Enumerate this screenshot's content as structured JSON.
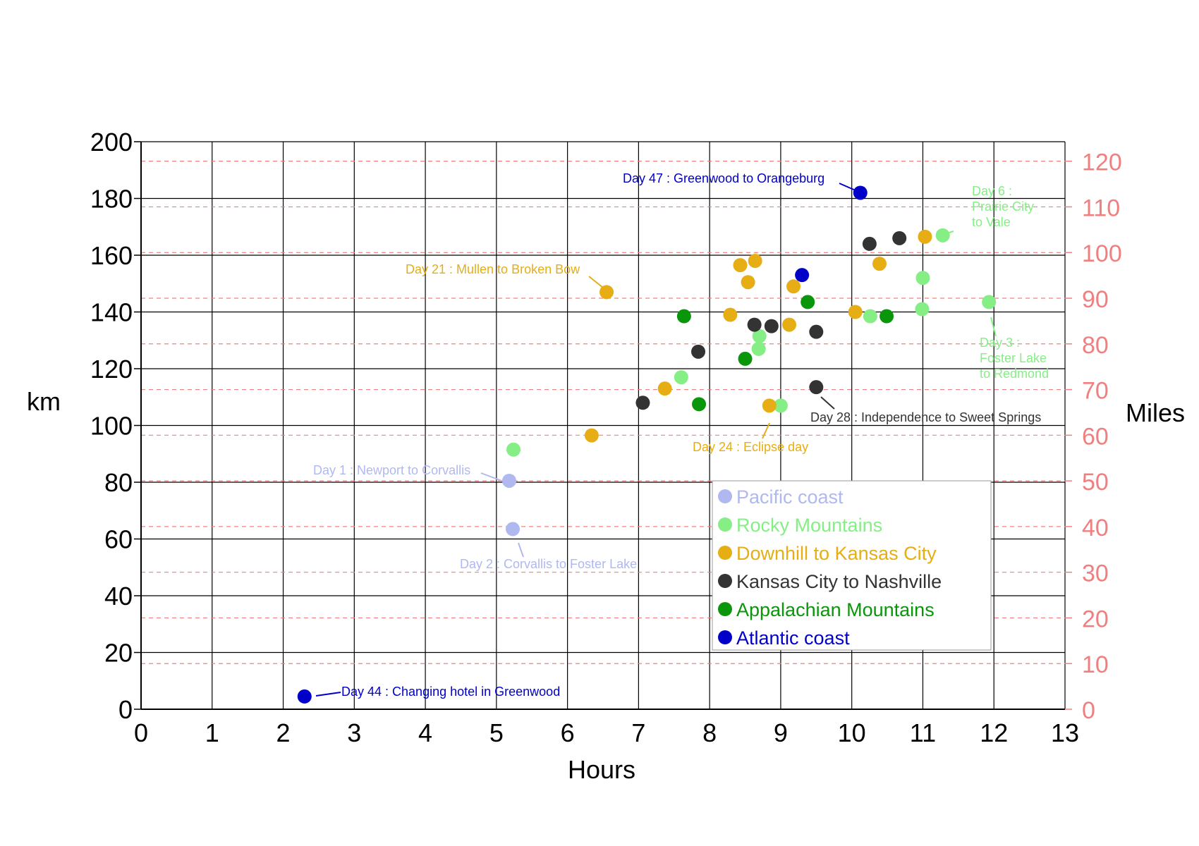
{
  "chart_data": {
    "type": "scatter",
    "title": "",
    "xlabel": "Hours",
    "ylabel": "km",
    "y2label": "Miles",
    "xlim": [
      0,
      13
    ],
    "ylim": [
      0,
      200
    ],
    "y2lim": [
      0,
      124.27
    ],
    "x_ticks": [
      "0",
      "1",
      "2",
      "3",
      "4",
      "5",
      "6",
      "7",
      "8",
      "9",
      "10",
      "11",
      "12",
      "13"
    ],
    "y_ticks": [
      "0",
      "20",
      "40",
      "60",
      "80",
      "100",
      "120",
      "140",
      "160",
      "180",
      "200"
    ],
    "y2_ticks": [
      "0",
      "10",
      "20",
      "30",
      "40",
      "50",
      "60",
      "70",
      "80",
      "90",
      "100",
      "110",
      "120"
    ],
    "grid": true,
    "legend_position": "bottom-right inside plot",
    "series": [
      {
        "name": "Pacific coast",
        "color": "#b0b8f0",
        "points": [
          [
            5.18,
            80.5
          ],
          [
            5.23,
            63.5
          ]
        ]
      },
      {
        "name": "Rocky Mountains",
        "color": "#85ee85",
        "points": [
          [
            5.24,
            91.5
          ],
          [
            11.28,
            167
          ],
          [
            11.93,
            143.5
          ],
          [
            7.6,
            117
          ],
          [
            8.7,
            131.5
          ],
          [
            8.69,
            127
          ],
          [
            9,
            107
          ],
          [
            10.26,
            138.5
          ],
          [
            11,
            152
          ],
          [
            10.99,
            141
          ]
        ]
      },
      {
        "name": "Downhill to Kansas City",
        "color": "#e6ae14",
        "points": [
          [
            6.55,
            147
          ],
          [
            6.34,
            96.5
          ],
          [
            7.37,
            113
          ],
          [
            8.29,
            139
          ],
          [
            8.43,
            156.5
          ],
          [
            8.64,
            158
          ],
          [
            8.54,
            150.5
          ],
          [
            8.84,
            107
          ],
          [
            9.12,
            135.5
          ],
          [
            9.18,
            149
          ],
          [
            10.05,
            140
          ],
          [
            10.39,
            157
          ],
          [
            11.03,
            166.5
          ]
        ]
      },
      {
        "name": "Kansas City to Nashville",
        "color": "#333333",
        "points": [
          [
            7.06,
            108
          ],
          [
            7.84,
            126
          ],
          [
            8.63,
            135.5
          ],
          [
            8.87,
            135
          ],
          [
            9.5,
            133
          ],
          [
            9.5,
            113.5
          ],
          [
            10.25,
            164
          ],
          [
            10.67,
            166
          ]
        ]
      },
      {
        "name": "Appalachian Mountains",
        "color": "#0a960a",
        "points": [
          [
            7.64,
            138.5
          ],
          [
            7.85,
            107.5
          ],
          [
            8.5,
            123.5
          ],
          [
            9.38,
            143.5
          ],
          [
            10.49,
            138.5
          ]
        ]
      },
      {
        "name": "Atlantic coast",
        "color": "#0000c8",
        "points": [
          [
            2.3,
            4.5
          ],
          [
            9.3,
            153
          ],
          [
            10.12,
            182
          ]
        ]
      }
    ],
    "annotations": [
      {
        "text": "Day 47 : Greenwood to Orangeburg",
        "series": 5,
        "point": 2
      },
      {
        "text": "Day 6 :",
        "series": 1,
        "point": 1
      },
      {
        "text": "Prairie City",
        "series": 1,
        "point": 1
      },
      {
        "text": "to Vale",
        "series": 1,
        "point": 1
      },
      {
        "text": "Day 21 : Mullen to Broken Bow",
        "series": 2,
        "point": 0
      },
      {
        "text": "Day 3 :",
        "series": 1,
        "point": 2
      },
      {
        "text": "Foster Lake",
        "series": 1,
        "point": 2
      },
      {
        "text": "to Redmond",
        "series": 1,
        "point": 2
      },
      {
        "text": "Day 28 : Independence to Sweet Springs",
        "series": 3,
        "point": 5
      },
      {
        "text": "Day 24 : Eclipse day",
        "series": 2,
        "point": 7
      },
      {
        "text": "Day 1 : Newport to Corvallis",
        "series": 0,
        "point": 0
      },
      {
        "text": "Day 2 : Corvallis to Foster Lake",
        "series": 0,
        "point": 1
      },
      {
        "text": "Day 44 : Changing hotel in Greenwood",
        "series": 5,
        "point": 0
      }
    ]
  }
}
